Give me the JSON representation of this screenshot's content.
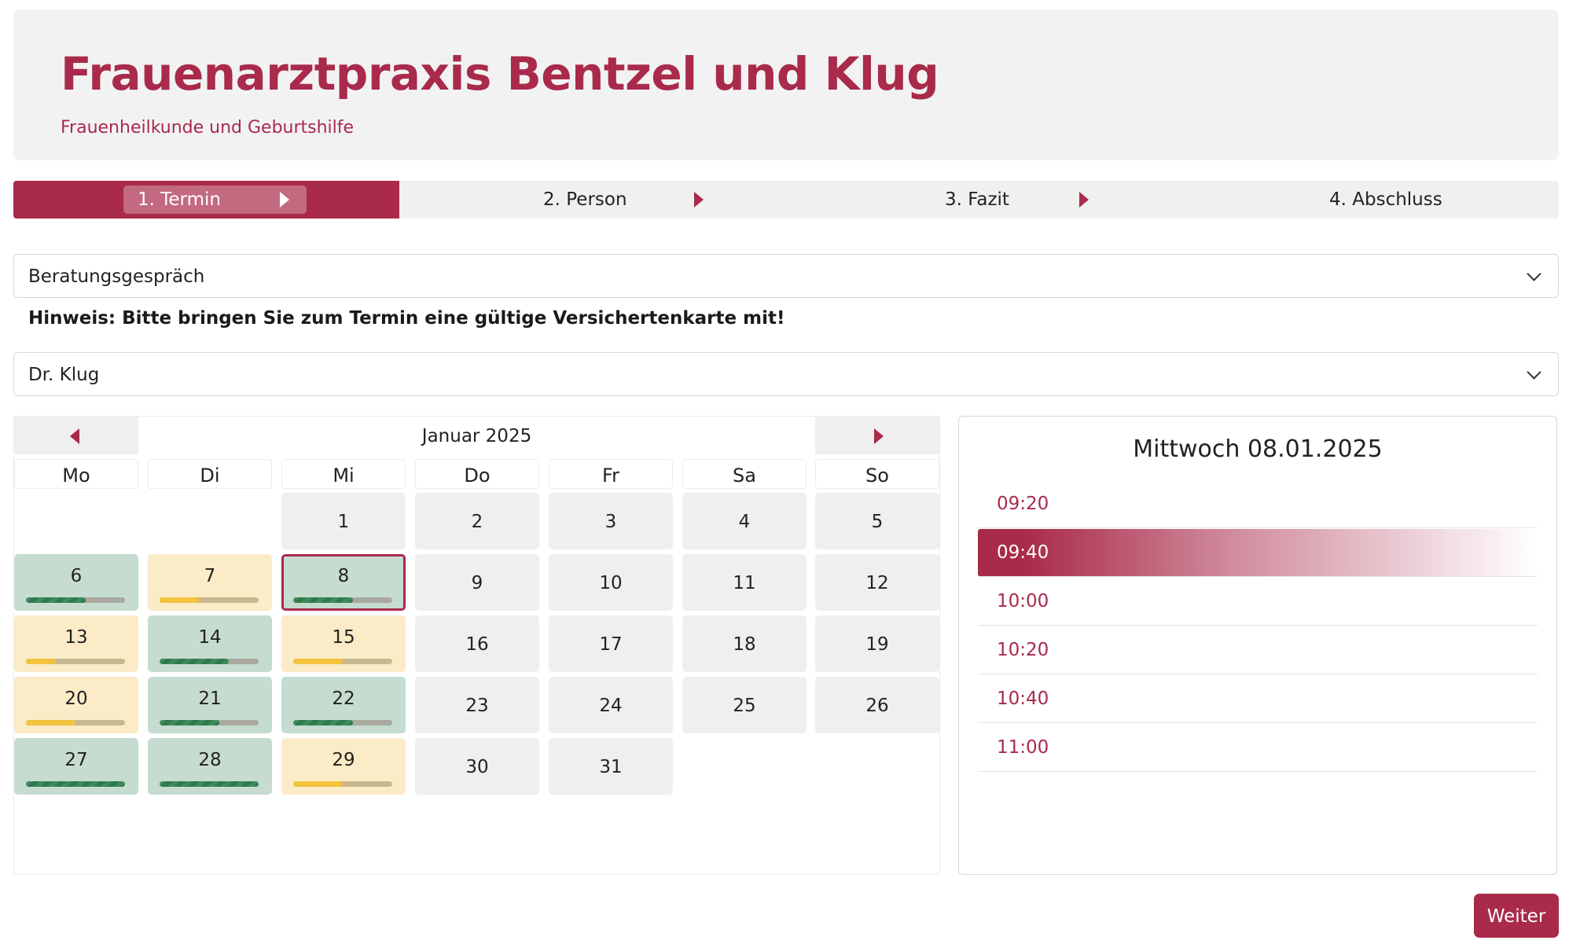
{
  "header": {
    "title": "Frauenarztpraxis Bentzel und Klug",
    "subtitle": "Frauenheilkunde und Geburtshilfe"
  },
  "steps": [
    {
      "label": "1. Termin",
      "active": true
    },
    {
      "label": "2. Person",
      "active": false
    },
    {
      "label": "3. Fazit",
      "active": false
    },
    {
      "label": "4. Abschluss",
      "active": false
    }
  ],
  "appointment_type": {
    "value": "Beratungsgespräch"
  },
  "hint": "Hinweis: Bitte bringen Sie zum Termin eine gültige Versichertenkarte mit!",
  "doctor": {
    "value": "Dr. Klug"
  },
  "calendar": {
    "month_label": "Januar 2025",
    "weekdays": [
      "Mo",
      "Di",
      "Mi",
      "Do",
      "Fr",
      "Sa",
      "So"
    ],
    "selected_day": 8,
    "days": [
      {
        "day": 1,
        "status": "none"
      },
      {
        "day": 2,
        "status": "none"
      },
      {
        "day": 3,
        "status": "none"
      },
      {
        "day": 4,
        "status": "none"
      },
      {
        "day": 5,
        "status": "none"
      },
      {
        "day": 6,
        "status": "available",
        "availability": 0.6
      },
      {
        "day": 7,
        "status": "limited",
        "availability": 0.4
      },
      {
        "day": 8,
        "status": "available",
        "availability": 0.6
      },
      {
        "day": 9,
        "status": "none"
      },
      {
        "day": 10,
        "status": "none"
      },
      {
        "day": 11,
        "status": "none"
      },
      {
        "day": 12,
        "status": "none"
      },
      {
        "day": 13,
        "status": "limited",
        "availability": 0.3
      },
      {
        "day": 14,
        "status": "available",
        "availability": 0.7
      },
      {
        "day": 15,
        "status": "limited",
        "availability": 0.5
      },
      {
        "day": 16,
        "status": "none"
      },
      {
        "day": 17,
        "status": "none"
      },
      {
        "day": 18,
        "status": "none"
      },
      {
        "day": 19,
        "status": "none"
      },
      {
        "day": 20,
        "status": "limited",
        "availability": 0.5
      },
      {
        "day": 21,
        "status": "available",
        "availability": 0.6
      },
      {
        "day": 22,
        "status": "available",
        "availability": 0.6
      },
      {
        "day": 23,
        "status": "none"
      },
      {
        "day": 24,
        "status": "none"
      },
      {
        "day": 25,
        "status": "none"
      },
      {
        "day": 26,
        "status": "none"
      },
      {
        "day": 27,
        "status": "available",
        "availability": 1.0
      },
      {
        "day": 28,
        "status": "available",
        "availability": 1.0
      },
      {
        "day": 29,
        "status": "limited",
        "availability": 0.5
      },
      {
        "day": 30,
        "status": "none"
      },
      {
        "day": 31,
        "status": "none"
      }
    ]
  },
  "times": {
    "heading": "Mittwoch 08.01.2025",
    "selected": "09:40",
    "slots": [
      "09:20",
      "09:40",
      "10:00",
      "10:20",
      "10:40",
      "11:00"
    ]
  },
  "next_button": "Weiter",
  "colors": {
    "accent": "#a92a4a",
    "available": "#c6dcd0",
    "limited": "#fbebc6",
    "none": "#efefef"
  }
}
